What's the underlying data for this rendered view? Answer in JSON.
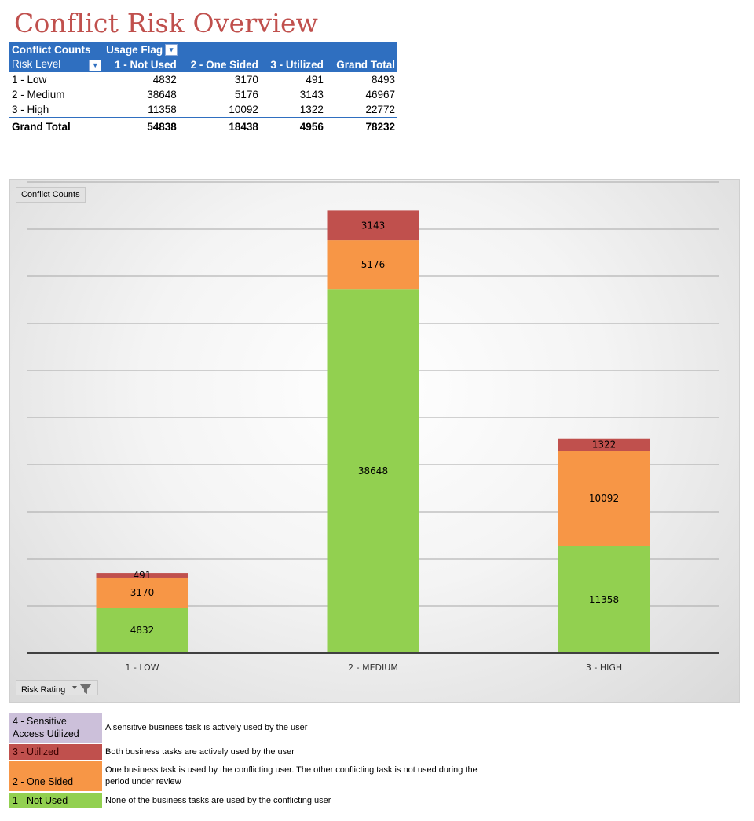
{
  "title": "Conflict Risk Overview",
  "pivot": {
    "corner_label": "Conflict Counts",
    "column_field": "Usage Flag",
    "row_field": "Risk Level",
    "columns": [
      "1 - Not Used",
      "2 - One Sided",
      "3 - Utilized",
      "Grand Total"
    ],
    "rows": [
      {
        "label": "1 - Low",
        "values": [
          "4832",
          "3170",
          "491",
          "8493"
        ]
      },
      {
        "label": "2 - Medium",
        "values": [
          "38648",
          "5176",
          "3143",
          "46967"
        ]
      },
      {
        "label": "3 - High",
        "values": [
          "11358",
          "10092",
          "1322",
          "22772"
        ]
      }
    ],
    "total": {
      "label": "Grand Total",
      "values": [
        "54838",
        "18438",
        "4956",
        "78232"
      ]
    }
  },
  "chart_buttons": {
    "values_field": "Conflict Counts",
    "axis_field": "Risk Rating"
  },
  "chart_data": {
    "type": "bar",
    "stacked": true,
    "categories": [
      "1 - LOW",
      "2 - MEDIUM",
      "3 - HIGH"
    ],
    "series": [
      {
        "name": "1 - Not Used",
        "color": "#92d050",
        "values": [
          4832,
          38648,
          11358
        ]
      },
      {
        "name": "2 - One Sided",
        "color": "#f79646",
        "values": [
          3170,
          5176,
          10092
        ]
      },
      {
        "name": "3 - Utilized",
        "color": "#c0504d",
        "values": [
          491,
          3143,
          1322
        ]
      }
    ],
    "ylim": [
      0,
      50000
    ],
    "grid": true,
    "gridline_step": 5000
  },
  "legend": [
    {
      "label": "4 - Sensitive Access Utilized",
      "color": "#ccc0da",
      "description": "A sensitive business task is actively used by the user"
    },
    {
      "label": "3 - Utilized",
      "color": "#c0504d",
      "description": "Both business tasks are actively used by the user"
    },
    {
      "label": "2 - One Sided",
      "color": "#f79646",
      "description": "One business task is used by the conflicting user. The other conflicting task is not used during the period under review"
    },
    {
      "label": "1 - Not Used",
      "color": "#92d050",
      "description": "None of the business tasks are used by the conflicting user"
    }
  ]
}
